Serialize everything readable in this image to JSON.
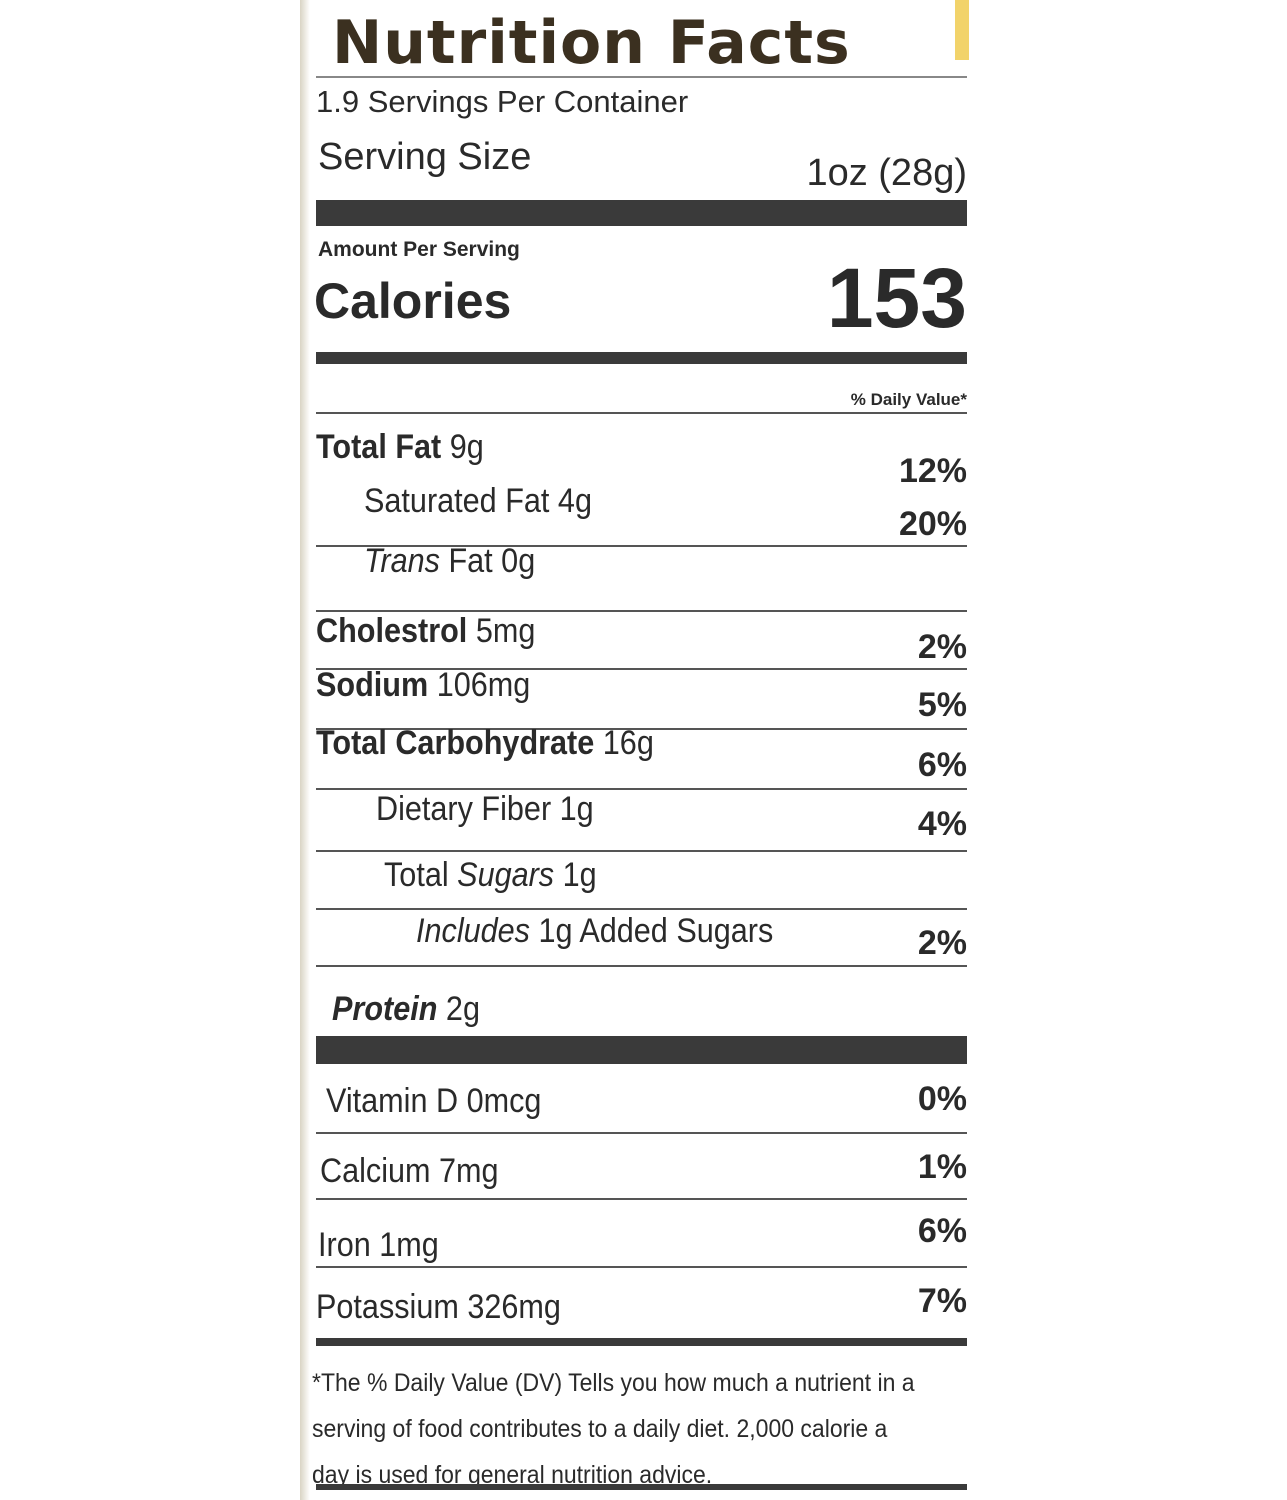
{
  "title": "Nutrition Facts",
  "servings_per_container": "1.9 Servings Per Container",
  "serving_size_label": "Serving Size",
  "serving_size_value": "1oz (28g)",
  "amount_per_serving": "Amount Per Serving",
  "calories_label": "Calories",
  "calories_value": "153",
  "daily_value_header": "% Daily Value*",
  "nutrients": [
    {
      "name": "Total Fat",
      "amount": "9g",
      "dv": "12%"
    },
    {
      "name": "Saturated Fat",
      "amount": "4g",
      "dv": "20%"
    },
    {
      "name": "Trans",
      "name_rest": "Fat",
      "amount": "0g",
      "dv": ""
    },
    {
      "name": "Cholestrol",
      "amount": "5mg",
      "dv": "2%"
    },
    {
      "name": "Sodium",
      "amount": "106mg",
      "dv": "5%"
    },
    {
      "name": "Total Carbohydrate",
      "amount": "16g",
      "dv": "6%"
    },
    {
      "name": "Dietary Fiber",
      "amount": "1g",
      "dv": "4%"
    },
    {
      "name": "Total",
      "name_rest": "Sugars",
      "amount": "1g",
      "dv": ""
    },
    {
      "name": "Includes",
      "amount": "1g Added Sugars",
      "dv": "2%"
    },
    {
      "name": "Protein",
      "amount": "2g",
      "dv": ""
    }
  ],
  "vitamins": [
    {
      "name": "Vitamin D",
      "amount": "0mcg",
      "dv": "0%"
    },
    {
      "name": "Calcium",
      "amount": "7mg",
      "dv": "1%"
    },
    {
      "name": "Iron",
      "amount": "1mg",
      "dv": "6%"
    },
    {
      "name": "Potassium",
      "amount": "326mg",
      "dv": "7%"
    }
  ],
  "footnote": {
    "line1": "*The % Daily Value (DV) Tells you how much a nutrient in a",
    "line2": "serving of food contributes to a daily diet. 2,000 calorie a",
    "line3": "day is used for general nutrition advice."
  }
}
